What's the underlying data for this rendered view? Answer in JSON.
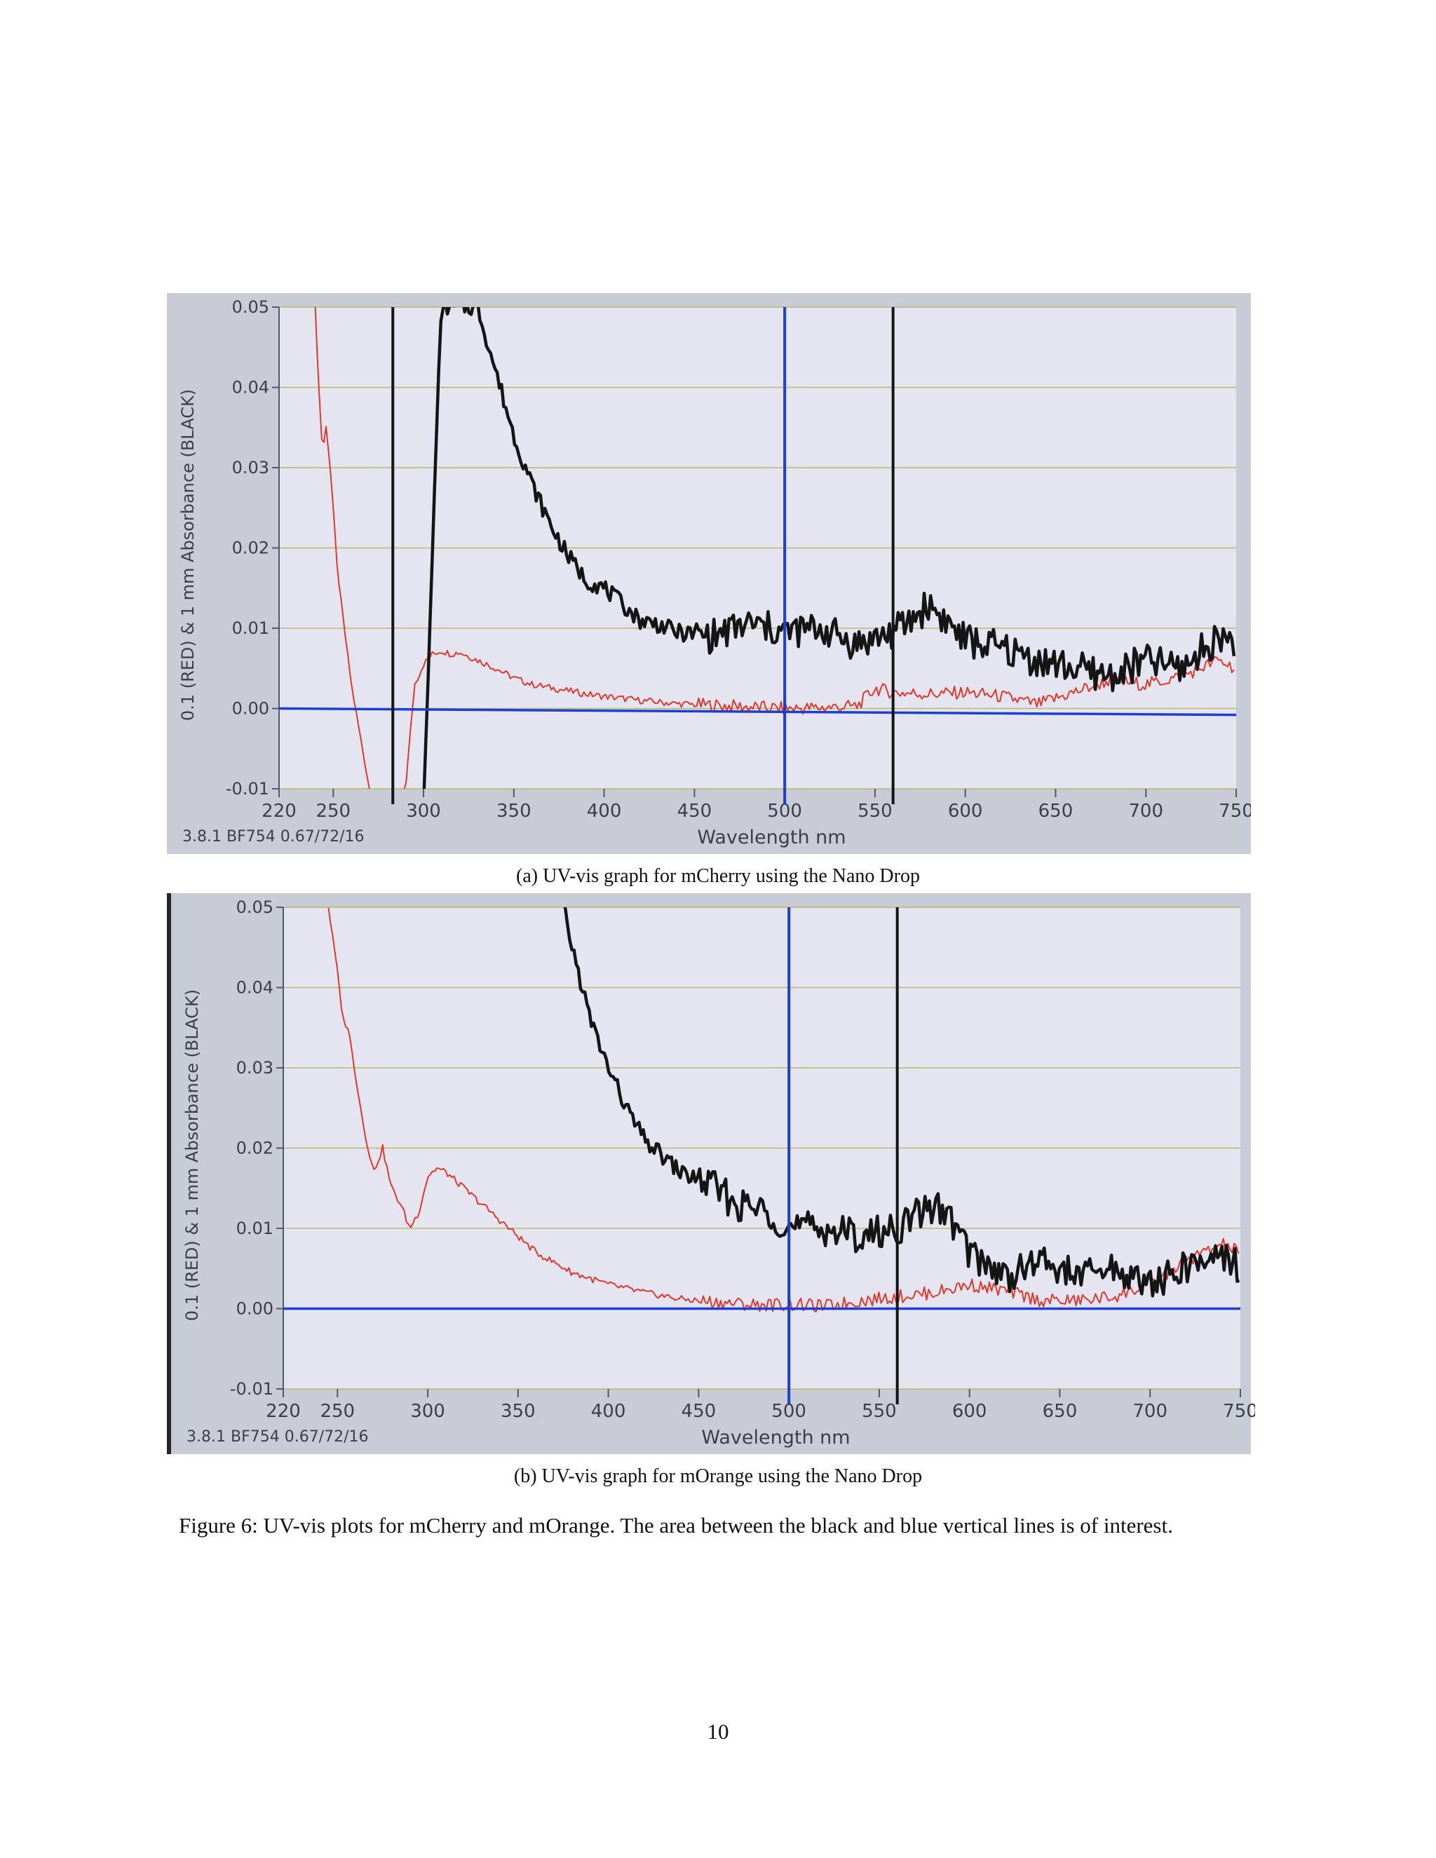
{
  "figure": {
    "caption": "Figure 6: UV-vis plots for mCherry and mOrange. The area between the black and blue vertical lines is of interest."
  },
  "page_number": "10",
  "colors": {
    "red_series": "#e03a2e",
    "black_series": "#151515",
    "blue_baseline": "#1d3fd0",
    "grid": "#b8b86a",
    "plot_bg": "#e4e5f0"
  },
  "chart_data": [
    {
      "type": "line",
      "subcaption": "(a) UV-vis graph for mCherry using the Nano Drop",
      "xlabel": "Wavelength nm",
      "ylabel": "0.1 (RED) & 1 mm Absorbance (BLACK)",
      "footer": "3.8.1 BF754 0.67/72/16",
      "xlim": [
        220,
        750
      ],
      "ylim": [
        -0.01,
        0.05
      ],
      "xticks": [
        "220",
        "250",
        "300",
        "350",
        "400",
        "450",
        "500",
        "550",
        "600",
        "650",
        "700",
        "750"
      ],
      "yticks": [
        "0.05",
        "0.04",
        "0.03",
        "0.02",
        "0.01",
        "0.00",
        "-0.01"
      ],
      "grid": true,
      "vlines": [
        {
          "x": 283,
          "color": "black"
        },
        {
          "x": 500,
          "color": "blue"
        },
        {
          "x": 560,
          "color": "black"
        }
      ],
      "series": [
        {
          "color": "red",
          "x": [
            240,
            242,
            244,
            246,
            248,
            250,
            252,
            255,
            260,
            270,
            280,
            290,
            295,
            300,
            305,
            310,
            315,
            320,
            330,
            340,
            350,
            360,
            370,
            380,
            390,
            400,
            420,
            440,
            460,
            480,
            500,
            520,
            540,
            550,
            560,
            580,
            600,
            620,
            640,
            660,
            680,
            700,
            720,
            740,
            750
          ],
          "y": [
            0.05,
            0.04,
            0.032,
            0.035,
            0.031,
            0.025,
            0.018,
            0.012,
            0.003,
            -0.01,
            -0.012,
            -0.01,
            0.003,
            0.0055,
            0.0068,
            0.0072,
            0.0068,
            0.007,
            0.006,
            0.005,
            0.0038,
            0.003,
            0.0026,
            0.0022,
            0.0018,
            0.0015,
            0.001,
            0.0006,
            0.0004,
            0.0002,
            0.0,
            0.0001,
            0.0003,
            0.0025,
            0.002,
            0.0018,
            0.002,
            0.0015,
            0.0005,
            0.002,
            0.0035,
            0.003,
            0.004,
            0.006,
            0.005
          ]
        },
        {
          "color": "black",
          "x": [
            300,
            302,
            305,
            308,
            310,
            315,
            320,
            325,
            330,
            340,
            350,
            360,
            370,
            380,
            390,
            400,
            410,
            420,
            430,
            440,
            460,
            480,
            500,
            520,
            540,
            560,
            570,
            580,
            600,
            620,
            640,
            660,
            680,
            700,
            720,
            740,
            750
          ],
          "y": [
            -0.012,
            0.0,
            0.02,
            0.04,
            0.05,
            0.05,
            0.05,
            0.05,
            0.05,
            0.042,
            0.034,
            0.028,
            0.023,
            0.019,
            0.016,
            0.015,
            0.013,
            0.011,
            0.0105,
            0.0095,
            0.009,
            0.0105,
            0.0095,
            0.01,
            0.008,
            0.0095,
            0.011,
            0.013,
            0.0085,
            0.0075,
            0.006,
            0.005,
            0.004,
            0.006,
            0.005,
            0.009,
            0.0085
          ]
        },
        {
          "color": "blue",
          "x": [
            220,
            750
          ],
          "y": [
            0.0,
            -0.0008
          ]
        }
      ]
    },
    {
      "type": "line",
      "subcaption": "(b) UV-vis graph for mOrange using the Nano Drop",
      "xlabel": "Wavelength nm",
      "ylabel": "0.1 (RED) & 1 mm Absorbance (BLACK)",
      "footer": "3.8.1 BF754 0.67/72/16",
      "xlim": [
        220,
        750
      ],
      "ylim": [
        -0.01,
        0.05
      ],
      "xticks": [
        "220",
        "250",
        "300",
        "350",
        "400",
        "450",
        "500",
        "550",
        "600",
        "650",
        "700",
        "750"
      ],
      "yticks": [
        "0.05",
        "0.04",
        "0.03",
        "0.02",
        "0.01",
        "0.00",
        "-0.01"
      ],
      "grid": true,
      "vlines": [
        {
          "x": 500,
          "color": "blue"
        },
        {
          "x": 560,
          "color": "black"
        }
      ],
      "series": [
        {
          "color": "red",
          "x": [
            245,
            250,
            253,
            256,
            260,
            265,
            270,
            275,
            280,
            285,
            290,
            295,
            300,
            305,
            310,
            320,
            330,
            340,
            350,
            360,
            380,
            400,
            420,
            440,
            460,
            480,
            500,
            520,
            540,
            560,
            580,
            600,
            620,
            640,
            660,
            680,
            700,
            720,
            740,
            750
          ],
          "y": [
            0.05,
            0.042,
            0.036,
            0.035,
            0.029,
            0.022,
            0.017,
            0.02,
            0.015,
            0.013,
            0.01,
            0.012,
            0.0165,
            0.0175,
            0.017,
            0.015,
            0.013,
            0.011,
            0.009,
            0.007,
            0.0045,
            0.003,
            0.002,
            0.0012,
            0.0008,
            0.0005,
            0.0005,
            0.0003,
            0.001,
            0.0015,
            0.002,
            0.003,
            0.0022,
            0.001,
            0.001,
            0.0015,
            0.003,
            0.006,
            0.008,
            0.007
          ]
        },
        {
          "color": "black",
          "x": [
            375,
            380,
            390,
            400,
            410,
            420,
            430,
            440,
            450,
            460,
            470,
            480,
            490,
            500,
            520,
            540,
            560,
            570,
            580,
            590,
            600,
            620,
            640,
            660,
            680,
            700,
            720,
            740,
            750
          ],
          "y": [
            0.05,
            0.045,
            0.036,
            0.03,
            0.025,
            0.021,
            0.019,
            0.017,
            0.016,
            0.015,
            0.013,
            0.0125,
            0.012,
            0.01,
            0.01,
            0.009,
            0.01,
            0.0115,
            0.013,
            0.011,
            0.007,
            0.004,
            0.006,
            0.004,
            0.005,
            0.003,
            0.005,
            0.007,
            0.005
          ]
        },
        {
          "color": "blue",
          "x": [
            220,
            750
          ],
          "y": [
            0.0,
            0.0
          ]
        }
      ]
    }
  ]
}
